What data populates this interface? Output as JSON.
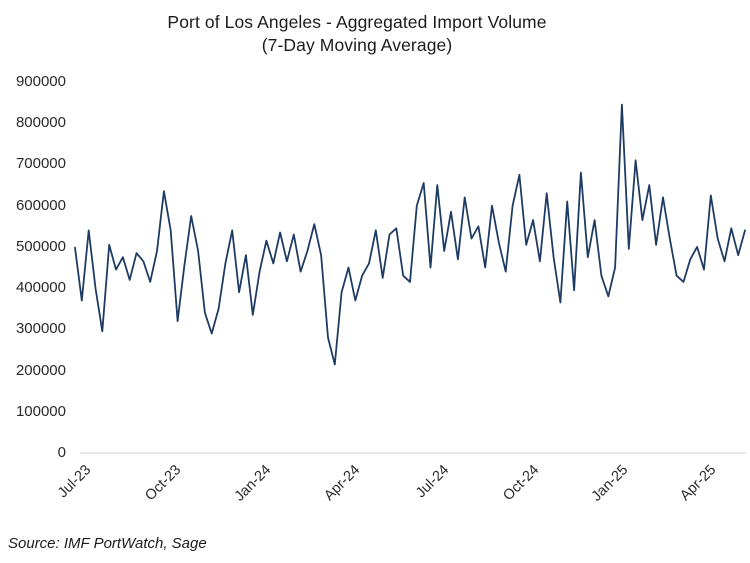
{
  "title": {
    "line1": "Port of Los Angeles - Aggregated Import Volume",
    "line2": "(7-Day Moving Average)"
  },
  "source_note": "Source: IMF PortWatch, Sage",
  "colors": {
    "line": "#1e3c63",
    "axis_line": "#d9d9d9",
    "text": "#2a2a2a"
  },
  "chart_data": {
    "type": "line",
    "title": "Port of Los Angeles - Aggregated Import Volume",
    "subtitle": "(7-Day Moving Average)",
    "source": "Source: IMF PortWatch, Sage",
    "xlabel": "",
    "ylabel": "",
    "grid": false,
    "legend": false,
    "ylim": [
      0,
      900000
    ],
    "y_ticks": [
      0,
      100000,
      200000,
      300000,
      400000,
      500000,
      600000,
      700000,
      800000,
      900000
    ],
    "y_tick_labels": [
      "0",
      "100000",
      "200000",
      "300000",
      "400000",
      "500000",
      "600000",
      "700000",
      "800000",
      "900000"
    ],
    "x_ticks": [
      {
        "label": "Jul-23",
        "date": "2023-07-01"
      },
      {
        "label": "Oct-23",
        "date": "2023-10-01"
      },
      {
        "label": "Jan-24",
        "date": "2024-01-01"
      },
      {
        "label": "Apr-24",
        "date": "2024-04-01"
      },
      {
        "label": "Jul-24",
        "date": "2024-07-01"
      },
      {
        "label": "Oct-24",
        "date": "2024-10-01"
      },
      {
        "label": "Jan-25",
        "date": "2025-01-01"
      },
      {
        "label": "Apr-25",
        "date": "2025-04-01"
      }
    ],
    "series": [
      {
        "name": "Aggregated import volume (7-day moving average)",
        "dates": [
          "2023-07-09",
          "2023-07-16",
          "2023-07-23",
          "2023-07-30",
          "2023-08-06",
          "2023-08-13",
          "2023-08-20",
          "2023-08-27",
          "2023-09-03",
          "2023-09-10",
          "2023-09-17",
          "2023-09-24",
          "2023-10-01",
          "2023-10-08",
          "2023-10-15",
          "2023-10-22",
          "2023-10-29",
          "2023-11-05",
          "2023-11-12",
          "2023-11-19",
          "2023-11-26",
          "2023-12-03",
          "2023-12-10",
          "2023-12-17",
          "2023-12-24",
          "2023-12-31",
          "2024-01-07",
          "2024-01-14",
          "2024-01-21",
          "2024-01-28",
          "2024-02-04",
          "2024-02-11",
          "2024-02-18",
          "2024-02-25",
          "2024-03-03",
          "2024-03-10",
          "2024-03-17",
          "2024-03-24",
          "2024-03-31",
          "2024-04-07",
          "2024-04-14",
          "2024-04-21",
          "2024-04-28",
          "2024-05-05",
          "2024-05-12",
          "2024-05-19",
          "2024-05-26",
          "2024-06-02",
          "2024-06-09",
          "2024-06-16",
          "2024-06-23",
          "2024-06-30",
          "2024-07-07",
          "2024-07-14",
          "2024-07-21",
          "2024-07-28",
          "2024-08-04",
          "2024-08-11",
          "2024-08-18",
          "2024-08-25",
          "2024-09-01",
          "2024-09-08",
          "2024-09-15",
          "2024-09-22",
          "2024-09-29",
          "2024-10-06",
          "2024-10-13",
          "2024-10-20",
          "2024-10-27",
          "2024-11-03",
          "2024-11-10",
          "2024-11-17",
          "2024-11-24",
          "2024-12-01",
          "2024-12-08",
          "2024-12-15",
          "2024-12-22",
          "2024-12-29",
          "2025-01-05",
          "2025-01-12",
          "2025-01-19",
          "2025-01-26",
          "2025-02-02",
          "2025-02-09",
          "2025-02-16",
          "2025-02-23",
          "2025-03-02",
          "2025-03-09",
          "2025-03-16",
          "2025-03-23",
          "2025-03-30",
          "2025-04-06",
          "2025-04-13",
          "2025-04-20",
          "2025-04-27",
          "2025-05-04",
          "2025-05-11",
          "2025-05-18",
          "2025-05-25"
        ],
        "values": [
          498000,
          370000,
          540000,
          400000,
          295000,
          505000,
          445000,
          475000,
          420000,
          485000,
          465000,
          415000,
          490000,
          635000,
          540000,
          320000,
          455000,
          575000,
          490000,
          340000,
          290000,
          350000,
          460000,
          540000,
          390000,
          480000,
          335000,
          440000,
          515000,
          460000,
          535000,
          465000,
          530000,
          440000,
          490000,
          555000,
          480000,
          280000,
          215000,
          390000,
          450000,
          370000,
          430000,
          460000,
          540000,
          425000,
          530000,
          545000,
          430000,
          415000,
          600000,
          655000,
          450000,
          650000,
          490000,
          585000,
          470000,
          620000,
          520000,
          550000,
          450000,
          600000,
          510000,
          440000,
          600000,
          675000,
          505000,
          565000,
          465000,
          630000,
          475000,
          365000,
          610000,
          395000,
          680000,
          475000,
          565000,
          430000,
          380000,
          450000,
          845000,
          495000,
          710000,
          565000,
          650000,
          505000,
          620000,
          520000,
          430000,
          415000,
          470000,
          500000,
          445000,
          625000,
          520000,
          465000,
          545000,
          480000,
          540000
        ]
      }
    ]
  }
}
